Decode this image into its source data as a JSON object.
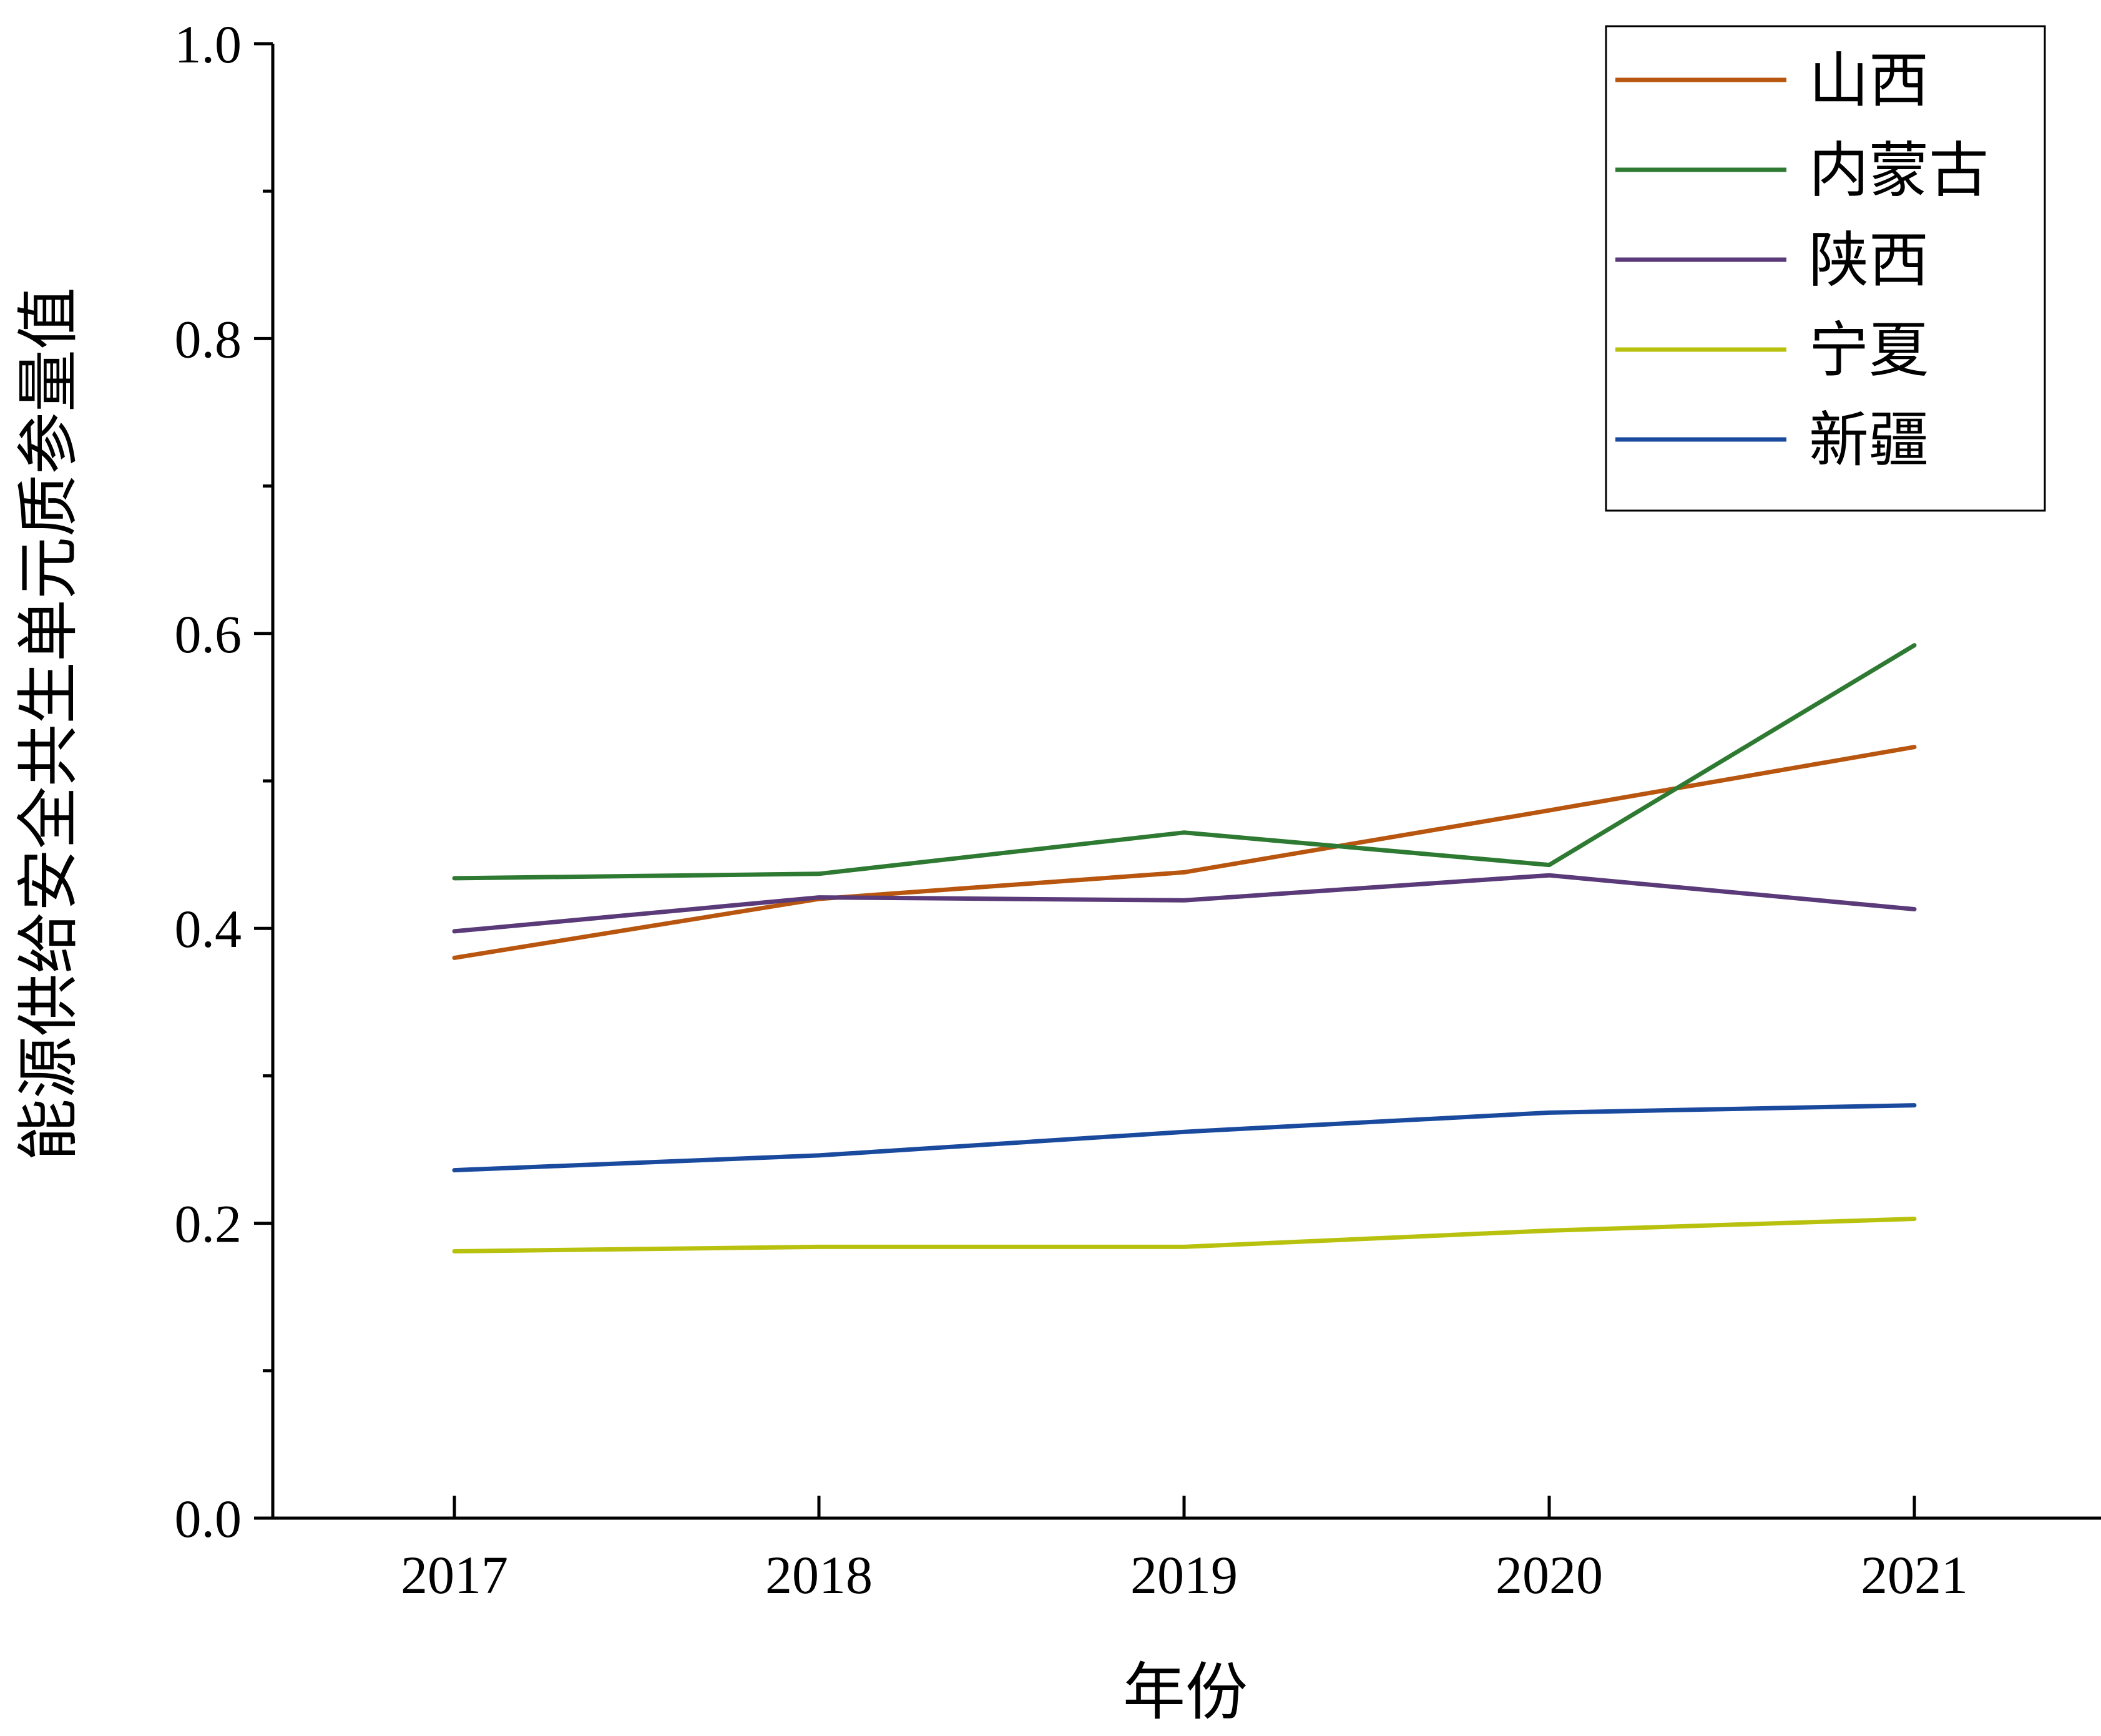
{
  "chart_data": {
    "type": "line",
    "title": "",
    "xlabel": "年份",
    "ylabel": "能源供给安全共生单元质参量值",
    "categories": [
      "2017",
      "2018",
      "2019",
      "2020",
      "2021"
    ],
    "ylim": [
      0.0,
      1.0
    ],
    "y_ticks": [
      "0.0",
      "0.2",
      "0.4",
      "0.6",
      "0.8",
      "1.0"
    ],
    "y_minor_ticks": [
      0.1,
      0.3,
      0.5,
      0.7,
      0.9
    ],
    "grid": false,
    "legend_position": "top-right",
    "series": [
      {
        "name": "山西",
        "color": "#B8560F",
        "values": [
          0.38,
          0.42,
          0.438,
          0.48,
          0.523
        ]
      },
      {
        "name": "内蒙古",
        "color": "#2E7A32",
        "values": [
          0.434,
          0.437,
          0.465,
          0.443,
          0.592
        ]
      },
      {
        "name": "陕西",
        "color": "#5A3A78",
        "values": [
          0.398,
          0.421,
          0.419,
          0.436,
          0.413
        ]
      },
      {
        "name": "宁夏",
        "color": "#B8C20E",
        "values": [
          0.181,
          0.184,
          0.184,
          0.195,
          0.203
        ]
      },
      {
        "name": "新疆",
        "color": "#1A4A9E",
        "values": [
          0.236,
          0.246,
          0.262,
          0.275,
          0.28
        ]
      }
    ]
  }
}
